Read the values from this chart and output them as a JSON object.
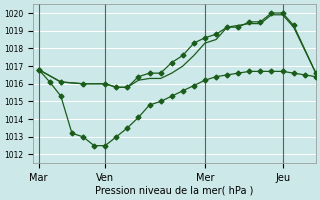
{
  "xlabel": "Pression niveau de la mer( hPa )",
  "ylim": [
    1011.5,
    1020.5
  ],
  "yticks": [
    1012,
    1013,
    1014,
    1015,
    1016,
    1017,
    1018,
    1019,
    1020
  ],
  "background_color": "#cce8e8",
  "grid_color": "#ffffff",
  "line_color": "#1a5c1a",
  "vline_color": "#556655",
  "day_labels": [
    "Mar",
    "Ven",
    "Mer",
    "Jeu"
  ],
  "day_positions": [
    0,
    6,
    15,
    22
  ],
  "xlim": [
    -0.5,
    25
  ],
  "line_lower_x": [
    0,
    1,
    2,
    3,
    4,
    5,
    6,
    7,
    8,
    9,
    10,
    11,
    12,
    13,
    14,
    15,
    16,
    17,
    18,
    19,
    20,
    21,
    22,
    23,
    24,
    25
  ],
  "line_lower_y": [
    1016.8,
    1016.1,
    1015.3,
    1013.2,
    1013.0,
    1012.5,
    1012.5,
    1013.0,
    1013.5,
    1014.1,
    1014.8,
    1015.0,
    1015.3,
    1015.6,
    1015.9,
    1016.2,
    1016.4,
    1016.5,
    1016.6,
    1016.7,
    1016.7,
    1016.7,
    1016.7,
    1016.6,
    1016.5,
    1016.4
  ],
  "line_upper_x": [
    0,
    2,
    4,
    6,
    7,
    8,
    9,
    10,
    11,
    12,
    13,
    14,
    15,
    16,
    17,
    18,
    19,
    20,
    21,
    22,
    23,
    25
  ],
  "line_upper_y": [
    1016.8,
    1016.1,
    1016.0,
    1016.0,
    1015.8,
    1015.8,
    1016.4,
    1016.6,
    1016.6,
    1017.2,
    1017.6,
    1018.3,
    1018.6,
    1018.8,
    1019.2,
    1019.2,
    1019.5,
    1019.5,
    1020.0,
    1020.0,
    1019.3,
    1016.6
  ],
  "line_mid_x": [
    0,
    2,
    4,
    6,
    7,
    8,
    9,
    10,
    11,
    12,
    13,
    14,
    15,
    16,
    17,
    18,
    19,
    20,
    21,
    22,
    23,
    25
  ],
  "line_mid_y": [
    1016.8,
    1016.1,
    1016.0,
    1016.0,
    1015.8,
    1015.8,
    1016.2,
    1016.3,
    1016.3,
    1016.6,
    1017.0,
    1017.6,
    1018.3,
    1018.5,
    1019.2,
    1019.3,
    1019.4,
    1019.4,
    1019.9,
    1019.9,
    1019.2,
    1016.6
  ]
}
